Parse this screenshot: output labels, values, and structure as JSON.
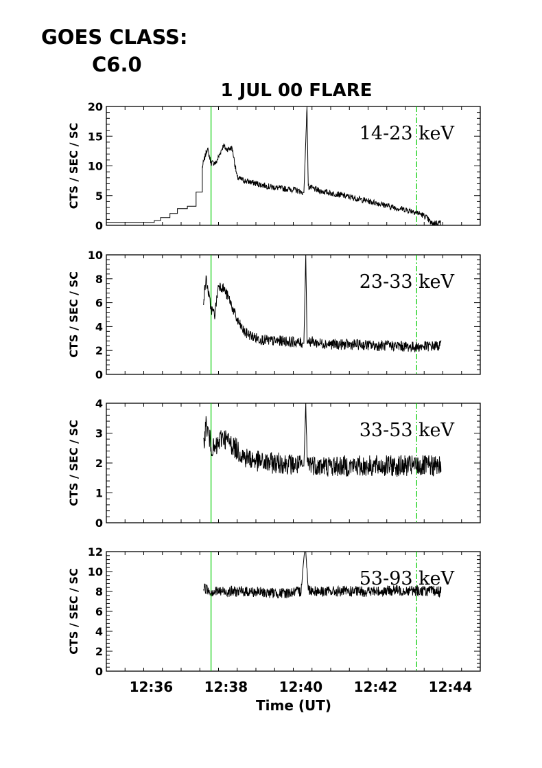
{
  "header": {
    "goes_label": "GOES CLASS:",
    "goes_value": "C6.0"
  },
  "chart_data": {
    "type": "line",
    "title": "1 JUL 00 FLARE",
    "xlabel": "Time (UT)",
    "xlim": [
      "12:34:48",
      "12:44:48"
    ],
    "x_ticks": [
      "12:36",
      "12:38",
      "12:40",
      "12:42",
      "12:44"
    ],
    "markers": [
      {
        "time": "12:37:36",
        "color": "#00cc00",
        "style": "solid"
      },
      {
        "time": "12:43:06",
        "color": "#00cc00",
        "style": "dash-dot"
      }
    ],
    "grid": false,
    "panels": [
      {
        "band_label": "14-23 keV",
        "ylabel": "CTS / SEC / SC",
        "ylim": [
          0,
          20
        ],
        "y_ticks": [
          "0",
          "5",
          "10",
          "15",
          "20"
        ],
        "series": {
          "times": [
            "12:34:48",
            "12:35:48",
            "12:36:05",
            "12:36:15",
            "12:36:30",
            "12:36:42",
            "12:36:58",
            "12:37:12",
            "12:37:22",
            "12:37:30",
            "12:37:36",
            "12:37:44",
            "12:37:56",
            "12:38:00",
            "12:38:10",
            "12:38:18",
            "12:38:30",
            "12:38:50",
            "12:39:10",
            "12:39:30",
            "12:39:50",
            "12:40:05",
            "12:40:10",
            "12:40:12",
            "12:40:30",
            "12:41:00",
            "12:41:30",
            "12:42:00",
            "12:42:30",
            "12:43:00",
            "12:43:10",
            "12:43:20",
            "12:43:30",
            "12:43:45"
          ],
          "values": [
            0.5,
            0.5,
            0.8,
            1.3,
            2.0,
            2.8,
            3.2,
            5.6,
            9.8,
            13.0,
            10.5,
            10.5,
            13.5,
            12.8,
            13.0,
            8.0,
            7.5,
            7.0,
            6.5,
            6.2,
            6.0,
            5.5,
            20.0,
            6.5,
            5.8,
            5.2,
            4.5,
            3.8,
            3.0,
            2.4,
            2.0,
            1.5,
            0.3,
            0.5
          ]
        }
      },
      {
        "band_label": "23-33 keV",
        "ylabel": "CTS / SEC / SC",
        "ylim": [
          0,
          10
        ],
        "y_ticks": [
          "0",
          "2",
          "4",
          "6",
          "8",
          "10"
        ],
        "series": {
          "times": [
            "12:37:24",
            "12:37:28",
            "12:37:36",
            "12:37:42",
            "12:37:48",
            "12:37:56",
            "12:38:06",
            "12:38:18",
            "12:38:30",
            "12:38:50",
            "12:39:10",
            "12:39:30",
            "12:39:50",
            "12:40:05",
            "12:40:08",
            "12:40:10",
            "12:40:12",
            "12:40:30",
            "12:41:00",
            "12:41:30",
            "12:42:00",
            "12:42:30",
            "12:43:00",
            "12:43:45"
          ],
          "values": [
            6.2,
            8.0,
            5.5,
            5.0,
            7.5,
            7.2,
            6.2,
            4.5,
            3.5,
            3.0,
            2.8,
            2.8,
            2.7,
            2.6,
            10.0,
            3.0,
            2.8,
            2.6,
            2.5,
            2.5,
            2.4,
            2.4,
            2.3,
            2.4
          ]
        }
      },
      {
        "band_label": "33-53 keV",
        "ylabel": "CTS / SEC / SC",
        "ylim": [
          0,
          4
        ],
        "y_ticks": [
          "0",
          "1",
          "2",
          "3",
          "4"
        ],
        "series": {
          "times": [
            "12:37:24",
            "12:37:28",
            "12:37:36",
            "12:37:42",
            "12:37:54",
            "12:38:10",
            "12:38:30",
            "12:39:00",
            "12:39:30",
            "12:40:05",
            "12:40:08",
            "12:40:10",
            "12:40:12",
            "12:40:30",
            "12:41:00",
            "12:41:30",
            "12:42:00",
            "12:42:30",
            "12:43:00",
            "12:43:45"
          ],
          "values": [
            2.7,
            3.3,
            2.6,
            2.4,
            2.9,
            2.6,
            2.2,
            2.0,
            2.0,
            1.9,
            4.0,
            2.1,
            2.0,
            1.9,
            1.9,
            1.9,
            1.9,
            1.9,
            1.9,
            1.9
          ]
        }
      },
      {
        "band_label": "53-93 keV",
        "ylabel": "CTS / SEC / SC",
        "ylim": [
          0,
          12
        ],
        "y_ticks": [
          "0",
          "2",
          "4",
          "6",
          "8",
          "10",
          "12"
        ],
        "series": {
          "times": [
            "12:37:24",
            "12:37:36",
            "12:38:00",
            "12:38:30",
            "12:39:00",
            "12:39:30",
            "12:40:00",
            "12:40:06",
            "12:40:08",
            "12:40:12",
            "12:40:30",
            "12:41:00",
            "12:41:30",
            "12:42:00",
            "12:42:30",
            "12:43:00",
            "12:43:45"
          ],
          "values": [
            8.4,
            8.0,
            8.0,
            8.0,
            7.9,
            7.8,
            8.0,
            12.0,
            12.0,
            8.2,
            8.0,
            8.0,
            8.0,
            8.0,
            8.1,
            8.1,
            8.0
          ]
        }
      }
    ]
  }
}
